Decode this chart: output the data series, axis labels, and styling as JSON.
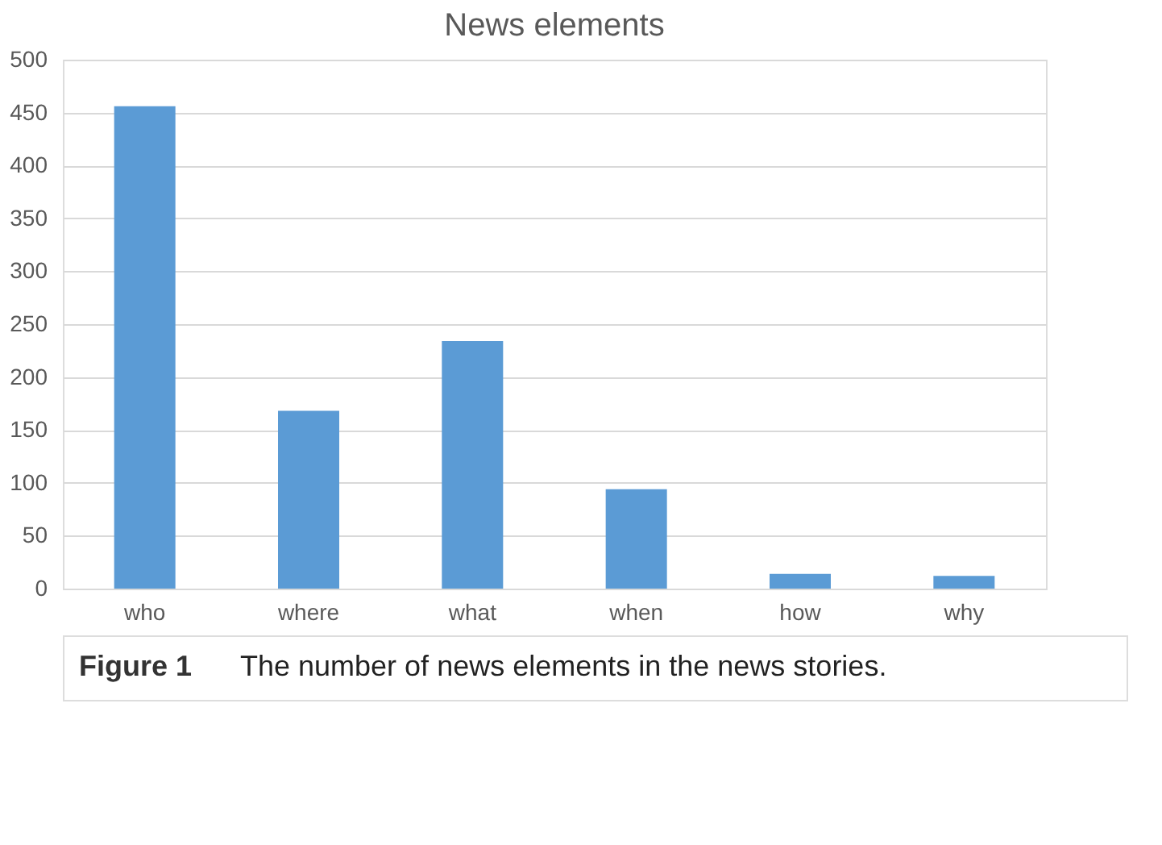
{
  "chart_data": {
    "type": "bar",
    "title": "News elements",
    "categories": [
      "who",
      "where",
      "what",
      "when",
      "how",
      "why"
    ],
    "values": [
      456,
      168,
      234,
      94,
      14,
      12
    ],
    "color": "#5b9bd5",
    "ylim": [
      0,
      500
    ],
    "yticks": [
      0,
      50,
      100,
      150,
      200,
      250,
      300,
      350,
      400,
      450,
      500
    ],
    "grid": "y",
    "annotations": [
      "Figure 1",
      "The number of news elements in the news stories."
    ]
  }
}
